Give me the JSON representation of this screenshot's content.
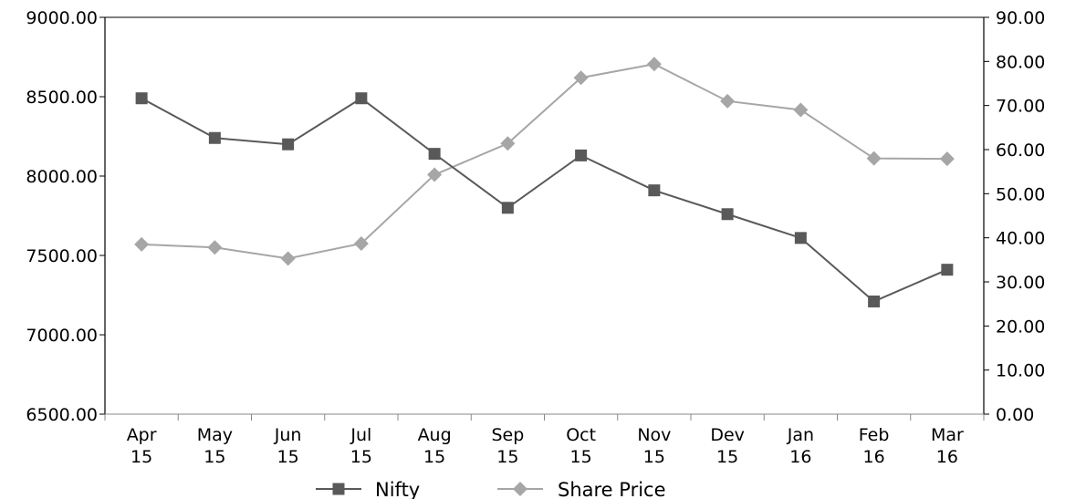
{
  "chart_data": {
    "type": "line",
    "categories": [
      "Apr 15",
      "May 15",
      "Jun 15",
      "Jul 15",
      "Aug 15",
      "Sep 15",
      "Oct 15",
      "Nov 15",
      "Dev 15",
      "Jan 16",
      "Feb 16",
      "Mar 16"
    ],
    "category_lines": [
      [
        "Apr",
        "15"
      ],
      [
        "May",
        "15"
      ],
      [
        "Jun",
        "15"
      ],
      [
        "Jul",
        "15"
      ],
      [
        "Aug",
        "15"
      ],
      [
        "Sep",
        "15"
      ],
      [
        "Oct",
        "15"
      ],
      [
        "Nov",
        "15"
      ],
      [
        "Dev",
        "15"
      ],
      [
        "Jan",
        "16"
      ],
      [
        "Feb",
        "16"
      ],
      [
        "Mar",
        "16"
      ]
    ],
    "series": [
      {
        "name": "Nifty",
        "axis": "left",
        "marker": "square",
        "color": "#595959",
        "values": [
          8490,
          8240,
          8200,
          8490,
          8140,
          7800,
          8130,
          7910,
          7760,
          7610,
          7210,
          7410
        ]
      },
      {
        "name": "Share Price",
        "axis": "right",
        "marker": "diamond",
        "color": "#a6a6a6",
        "values": [
          38.5,
          37.8,
          35.3,
          38.7,
          54.3,
          61.4,
          76.3,
          79.4,
          71.0,
          69.0,
          58.0,
          57.9
        ]
      }
    ],
    "y_left": {
      "ylim": [
        6500,
        9000
      ],
      "ticks": [
        "6500.00",
        "7000.00",
        "7500.00",
        "8000.00",
        "8500.00",
        "9000.00"
      ]
    },
    "y_right": {
      "ylim": [
        0,
        90
      ],
      "ticks": [
        "0.00",
        "10.00",
        "20.00",
        "30.00",
        "40.00",
        "50.00",
        "60.00",
        "70.00",
        "80.00",
        "90.00"
      ]
    },
    "grid": false,
    "legend_position": "bottom"
  }
}
